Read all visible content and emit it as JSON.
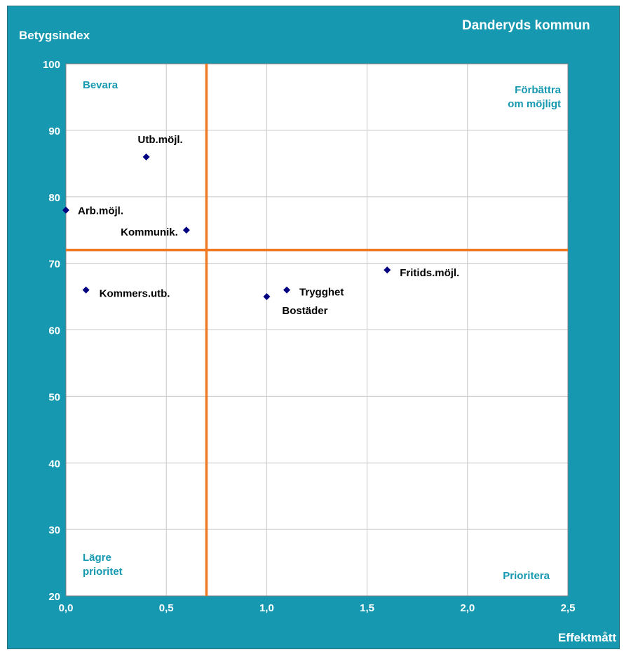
{
  "chart_data": {
    "type": "scatter",
    "title": "Danderyds kommun",
    "xlabel": "Effektmått",
    "ylabel": "Betygsindex",
    "xlim": [
      0.0,
      2.5
    ],
    "ylim": [
      20,
      100
    ],
    "x_ticks": [
      "0,0",
      "0,5",
      "1,0",
      "1,5",
      "2,0",
      "2,5"
    ],
    "y_ticks": [
      "20",
      "30",
      "40",
      "50",
      "60",
      "70",
      "80",
      "90",
      "100"
    ],
    "grid": true,
    "reference_lines": {
      "x": 0.7,
      "y": 72,
      "color": "#F07820"
    },
    "quadrants": {
      "top_left": [
        "Bevara"
      ],
      "top_right": [
        "Förbättra",
        "om möjligt"
      ],
      "bottom_left": [
        "Lägre",
        "prioritet"
      ],
      "bottom_right": [
        "Prioritera"
      ]
    },
    "marker_color": "#000080",
    "points": [
      {
        "label": "Utb.möjl.",
        "x": 0.4,
        "y": 86
      },
      {
        "label": "Arb.möjl.",
        "x": 0.0,
        "y": 78
      },
      {
        "label": "Kommunik.",
        "x": 0.6,
        "y": 75
      },
      {
        "label": "Kommers.utb.",
        "x": 0.1,
        "y": 66
      },
      {
        "label": "Trygghet",
        "x": 1.1,
        "y": 66
      },
      {
        "label": "Bostäder",
        "x": 1.0,
        "y": 65
      },
      {
        "label": "Fritids.möjl.",
        "x": 1.6,
        "y": 69
      }
    ]
  }
}
